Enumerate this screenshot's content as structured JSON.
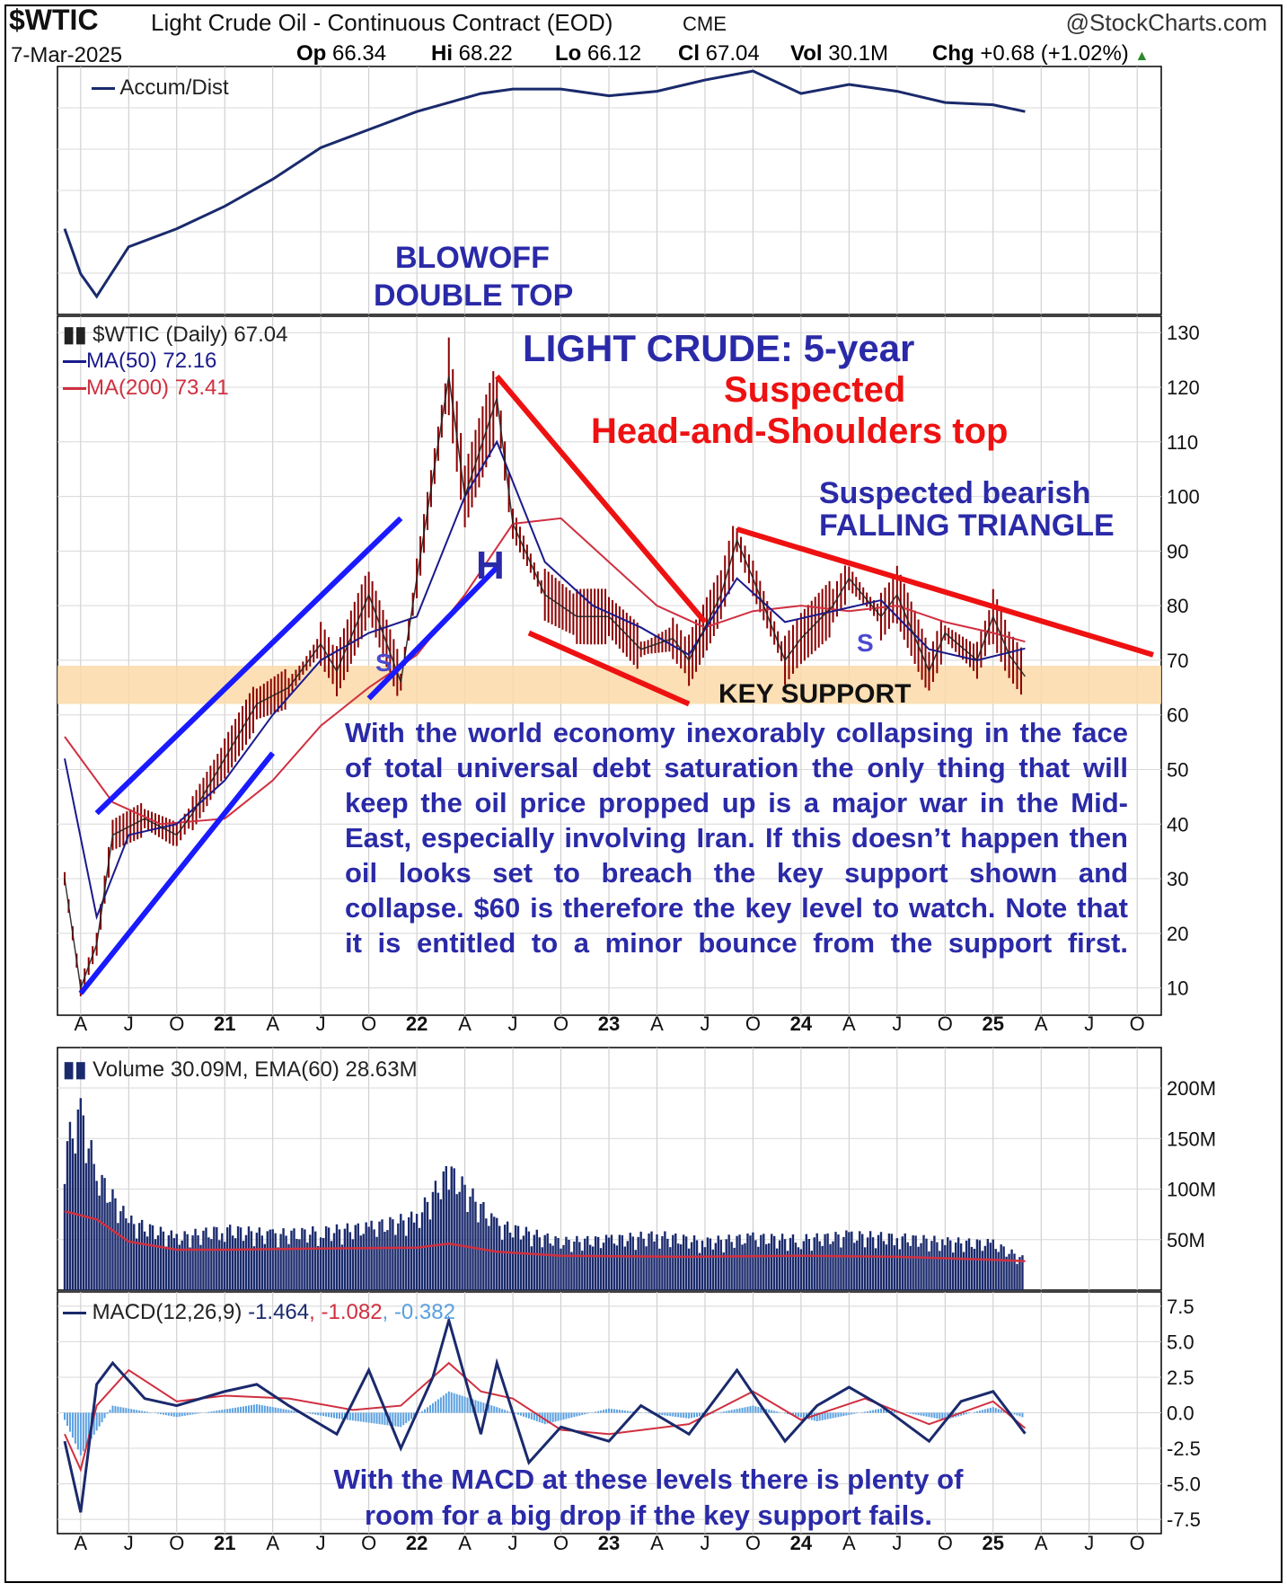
{
  "header": {
    "symbol": "$WTIC",
    "name": "Light Crude Oil - Continuous Contract (EOD)",
    "exchange": "CME",
    "brand": "@StockCharts.com",
    "date": "7-Mar-2025",
    "op_label": "Op",
    "op": "66.34",
    "hi_label": "Hi",
    "hi": "68.22",
    "lo_label": "Lo",
    "lo": "66.12",
    "cl_label": "Cl",
    "cl": "67.04",
    "vol_label": "Vol",
    "vol": "30.1M",
    "chg_label": "Chg",
    "chg": "+0.68 (+1.02%)"
  },
  "colors": {
    "price_bar": "#8b0000",
    "ma50": "#1a1a8c",
    "ma200": "#d03040",
    "trendline_blue": "#1a1aff",
    "trendline_red": "#ee1111",
    "support_band": "#fbd9a8",
    "annotation_blue": "#2a2aa8",
    "annotation_red": "#ee1111",
    "volume_bar": "#1a2a6c",
    "macd_line": "#1a2a6c",
    "macd_signal": "#d03040",
    "macd_hist": "#5aa0e0"
  },
  "legends": {
    "ad": "Accum/Dist",
    "price": "$WTIC (Daily) 67.04",
    "ma50": "MA(50) 72.16",
    "ma200": "MA(200) 73.41",
    "volume": "Volume 30.09M, EMA(60) 28.63M",
    "macd_name": "MACD(12,26,9)",
    "macd_v1": "-1.464",
    "macd_v2": "-1.082",
    "macd_v3": "-0.382",
    "comma": ","
  },
  "annotations": {
    "blowoff_1": "BLOWOFF",
    "blowoff_2": "DOUBLE TOP",
    "title": "LIGHT CRUDE: 5-year",
    "hs_1": "Suspected",
    "hs_2": "Head-and-Shoulders top",
    "tri_1": "Suspected bearish",
    "tri_2": "FALLING TRIANGLE",
    "head": "H",
    "shoulder_left": "S",
    "shoulder_right": "S",
    "key_support": "KEY SUPPORT",
    "paragraph": "With the world economy inexorably collapsing in the face of total universal debt saturation the only thing that will keep the oil price propped up is a major war in the Mid-East, especially involving Iran. If this doesn’t happen then oil looks set to breach the key support shown and collapse. $60 is therefore the key level to watch. Note that it is entitled to a minor bounce from the support first.",
    "macd_note_1": "With the MACD  at these levels there is plenty of",
    "macd_note_2": "room for a big drop if the key  support fails."
  },
  "x_axis_labels": [
    "A",
    "J",
    "O",
    "21",
    "A",
    "J",
    "O",
    "22",
    "A",
    "J",
    "O",
    "23",
    "A",
    "J",
    "O",
    "24",
    "A",
    "J",
    "O",
    "25",
    "A",
    "J",
    "O"
  ],
  "chart_data": [
    {
      "type": "line",
      "panel": "accum_dist",
      "series": [
        {
          "name": "Accum/Dist",
          "x": [
            "2020-03",
            "2020-04",
            "2020-05",
            "2020-07",
            "2020-10",
            "2021-01",
            "2021-04",
            "2021-07",
            "2021-10",
            "2022-01",
            "2022-03",
            "2022-05",
            "2022-07",
            "2022-10",
            "2023-01",
            "2023-04",
            "2023-07",
            "2023-10",
            "2024-01",
            "2024-04",
            "2024-07",
            "2024-10",
            "2025-01",
            "2025-03"
          ],
          "values": [
            38,
            18,
            8,
            30,
            38,
            48,
            60,
            74,
            82,
            90,
            94,
            98,
            100,
            100,
            97,
            99,
            104,
            108,
            98,
            102,
            99,
            94,
            93,
            90
          ]
        }
      ]
    },
    {
      "type": "line",
      "panel": "price",
      "x_labels": [
        "A",
        "J",
        "O",
        "21",
        "A",
        "J",
        "O",
        "22",
        "A",
        "J",
        "O",
        "23",
        "A",
        "J",
        "O",
        "24",
        "A",
        "J",
        "O",
        "25",
        "A",
        "J",
        "O"
      ],
      "ylim": [
        5,
        133
      ],
      "yticks": [
        10,
        20,
        30,
        40,
        50,
        60,
        70,
        80,
        90,
        100,
        110,
        120,
        130
      ],
      "series": [
        {
          "name": "$WTIC (Daily)",
          "x": [
            "2020-03",
            "2020-04",
            "2020-05",
            "2020-06",
            "2020-08",
            "2020-10",
            "2020-11",
            "2021-01",
            "2021-03",
            "2021-05",
            "2021-07",
            "2021-08",
            "2021-10",
            "2021-12",
            "2022-01",
            "2022-03",
            "2022-04",
            "2022-06",
            "2022-07",
            "2022-09",
            "2022-11",
            "2023-01",
            "2023-03",
            "2023-05",
            "2023-06",
            "2023-08",
            "2023-09",
            "2023-10",
            "2023-12",
            "2024-01",
            "2024-03",
            "2024-04",
            "2024-06",
            "2024-07",
            "2024-09",
            "2024-10",
            "2024-12",
            "2025-01",
            "2025-02",
            "2025-03"
          ],
          "values": [
            30,
            10,
            18,
            38,
            41,
            38,
            42,
            52,
            62,
            65,
            73,
            68,
            82,
            66,
            85,
            122,
            100,
            118,
            95,
            82,
            78,
            78,
            72,
            74,
            70,
            82,
            92,
            85,
            70,
            74,
            80,
            85,
            78,
            82,
            68,
            75,
            70,
            78,
            71,
            67.04
          ]
        },
        {
          "name": "MA(50)",
          "x": [
            "2020-03",
            "2020-05",
            "2020-07",
            "2020-10",
            "2021-01",
            "2021-04",
            "2021-07",
            "2021-10",
            "2022-01",
            "2022-04",
            "2022-06",
            "2022-09",
            "2022-12",
            "2023-03",
            "2023-06",
            "2023-09",
            "2023-12",
            "2024-03",
            "2024-06",
            "2024-09",
            "2024-12",
            "2025-03"
          ],
          "values": [
            52,
            23,
            38,
            40,
            48,
            60,
            70,
            75,
            78,
            100,
            110,
            88,
            80,
            76,
            71,
            85,
            77,
            79,
            81,
            72,
            70,
            72.16
          ]
        },
        {
          "name": "MA(200)",
          "x": [
            "2020-03",
            "2020-06",
            "2020-09",
            "2021-01",
            "2021-04",
            "2021-07",
            "2021-10",
            "2022-01",
            "2022-04",
            "2022-07",
            "2022-10",
            "2023-01",
            "2023-04",
            "2023-07",
            "2023-10",
            "2024-01",
            "2024-04",
            "2024-07",
            "2024-10",
            "2025-01",
            "2025-03"
          ],
          "values": [
            56,
            44,
            40,
            41,
            48,
            58,
            65,
            71,
            82,
            95,
            96,
            88,
            80,
            76,
            79,
            80,
            79,
            80,
            77,
            75,
            73.41
          ]
        }
      ],
      "support_band": [
        62,
        69
      ],
      "trendlines": [
        {
          "from": [
            "2020-04",
            9
          ],
          "to": [
            "2021-04",
            53
          ],
          "color": "blue"
        },
        {
          "from": [
            "2020-05",
            42
          ],
          "to": [
            "2021-12",
            96
          ],
          "color": "blue"
        },
        {
          "from": [
            "2021-10",
            63
          ],
          "to": [
            "2022-06",
            87
          ],
          "color": "blue"
        },
        {
          "from": [
            "2022-06",
            122
          ],
          "to": [
            "2023-07",
            77
          ],
          "color": "red"
        },
        {
          "from": [
            "2022-08",
            75
          ],
          "to": [
            "2023-06",
            62
          ],
          "color": "red"
        },
        {
          "from": [
            "2023-09",
            94
          ],
          "to": [
            "2025-11",
            71
          ],
          "color": "red"
        }
      ]
    },
    {
      "type": "bar",
      "panel": "volume",
      "ylim": [
        0,
        240
      ],
      "yticks": [
        50,
        100,
        150,
        200
      ],
      "yticklabels": [
        "50M",
        "100M",
        "150M",
        "200M"
      ],
      "series": [
        {
          "name": "Volume",
          "x": [
            "2020-03",
            "2020-04",
            "2020-05",
            "2020-07",
            "2020-10",
            "2021-01",
            "2021-04",
            "2021-07",
            "2021-10",
            "2022-01",
            "2022-03",
            "2022-06",
            "2022-10",
            "2023-01",
            "2023-04",
            "2023-07",
            "2023-10",
            "2024-01",
            "2024-04",
            "2024-07",
            "2024-10",
            "2025-01",
            "2025-03"
          ],
          "values": [
            140,
            175,
            115,
            68,
            52,
            60,
            55,
            58,
            62,
            72,
            118,
            65,
            48,
            50,
            54,
            48,
            52,
            50,
            54,
            52,
            48,
            46,
            30.09
          ]
        },
        {
          "name": "EMA(60)",
          "x": [
            "2020-03",
            "2020-05",
            "2020-07",
            "2020-10",
            "2021-01",
            "2021-06",
            "2022-01",
            "2022-03",
            "2022-06",
            "2022-10",
            "2023-06",
            "2024-01",
            "2024-07",
            "2025-01",
            "2025-03"
          ],
          "values": [
            78,
            70,
            48,
            40,
            40,
            41,
            42,
            46,
            38,
            34,
            33,
            34,
            33,
            30,
            28.63
          ]
        }
      ]
    },
    {
      "type": "line",
      "panel": "macd",
      "ylim": [
        -8.5,
        8.5
      ],
      "yticks": [
        -7.5,
        -5.0,
        -2.5,
        0.0,
        2.5,
        5.0,
        7.5
      ],
      "yticklabels": [
        "-7.5",
        "-5.0",
        "-2.5",
        "0.0",
        "2.5",
        "5.0",
        "7.5"
      ],
      "series": [
        {
          "name": "MACD",
          "x": [
            "2020-03",
            "2020-04",
            "2020-05",
            "2020-06",
            "2020-08",
            "2020-10",
            "2021-01",
            "2021-03",
            "2021-05",
            "2021-08",
            "2021-10",
            "2021-12",
            "2022-02",
            "2022-03",
            "2022-05",
            "2022-06",
            "2022-08",
            "2022-10",
            "2023-01",
            "2023-03",
            "2023-06",
            "2023-09",
            "2023-12",
            "2024-02",
            "2024-04",
            "2024-06",
            "2024-09",
            "2024-11",
            "2025-01",
            "2025-03"
          ],
          "values": [
            -2,
            -7.0,
            2.0,
            3.5,
            1.0,
            0.5,
            1.5,
            2.0,
            0.5,
            -1.5,
            3.0,
            -2.5,
            2.5,
            6.5,
            -1.5,
            3.5,
            -3.5,
            -1.0,
            -2.0,
            0.5,
            -1.5,
            3.0,
            -2.0,
            0.5,
            1.8,
            0.5,
            -2.0,
            0.8,
            1.5,
            -1.464
          ]
        },
        {
          "name": "Signal",
          "x": [
            "2020-03",
            "2020-04",
            "2020-05",
            "2020-07",
            "2020-10",
            "2021-01",
            "2021-05",
            "2021-09",
            "2021-12",
            "2022-03",
            "2022-05",
            "2022-07",
            "2022-10",
            "2023-01",
            "2023-06",
            "2023-10",
            "2024-01",
            "2024-05",
            "2024-09",
            "2025-01",
            "2025-03"
          ],
          "values": [
            -1.5,
            -4.0,
            0.5,
            3.0,
            0.8,
            1.2,
            1.0,
            0.2,
            0.5,
            3.5,
            1.5,
            1.0,
            -1.2,
            -1.5,
            -0.8,
            1.5,
            -0.5,
            1.0,
            -0.8,
            0.8,
            -1.082
          ]
        },
        {
          "name": "Histogram",
          "x": [
            "2020-03",
            "2020-04",
            "2020-06",
            "2020-10",
            "2021-03",
            "2021-08",
            "2021-12",
            "2022-03",
            "2022-06",
            "2022-09",
            "2023-01",
            "2023-06",
            "2023-10",
            "2024-02",
            "2024-06",
            "2024-10",
            "2025-01",
            "2025-03"
          ],
          "values": [
            -0.5,
            -3.0,
            0.5,
            -0.3,
            0.6,
            -0.4,
            -1.0,
            1.5,
            0.4,
            -0.8,
            0.3,
            -0.4,
            0.5,
            -0.6,
            0.3,
            -0.5,
            0.4,
            -0.382
          ]
        }
      ]
    }
  ]
}
